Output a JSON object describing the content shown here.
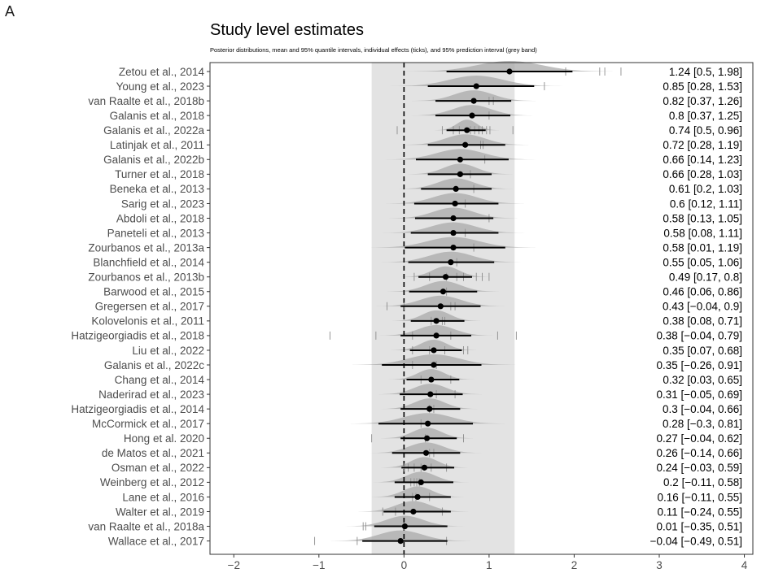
{
  "panel_letter": "A",
  "chart_data": {
    "type": "forest",
    "title": "Study level estimates",
    "subtitle": "Posterior distributions, mean and 95% quantile intervals, individual effects (ticks), and 95% prediction interval (grey band)",
    "xlabel": "",
    "ylabel": "",
    "xlim": [
      -2.28,
      4.1
    ],
    "x_ticks": [
      -2,
      -1,
      0,
      1,
      2,
      3,
      4
    ],
    "x_tick_labels": [
      "−2",
      "−1",
      "0",
      "1",
      "2",
      "3",
      "4"
    ],
    "prediction_interval": [
      -0.38,
      1.3
    ],
    "reference_line": 0,
    "grid": false,
    "studies": [
      {
        "label": "Zetou et al., 2014",
        "mean": 1.24,
        "lower": 0.5,
        "upper": 1.98,
        "text": "1.24 [0.5, 1.98]",
        "effects": [
          1.9,
          2.3,
          2.36,
          2.55
        ]
      },
      {
        "label": "Young et al., 2023",
        "mean": 0.85,
        "lower": 0.28,
        "upper": 1.53,
        "text": "0.85 [0.28, 1.53]",
        "effects": [
          1.65
        ]
      },
      {
        "label": "van Raalte et al., 2018b",
        "mean": 0.82,
        "lower": 0.37,
        "upper": 1.26,
        "text": "0.82 [0.37, 1.26]",
        "effects": [
          1.0,
          1.05
        ]
      },
      {
        "label": "Galanis et al., 2018",
        "mean": 0.8,
        "lower": 0.37,
        "upper": 1.25,
        "text": "0.8 [0.37, 1.25]",
        "effects": [
          1.0
        ]
      },
      {
        "label": "Galanis et al., 2022a",
        "mean": 0.74,
        "lower": 0.5,
        "upper": 0.96,
        "text": "0.74 [0.5, 0.96]",
        "effects": [
          -0.08,
          0.45,
          0.58,
          0.65,
          0.78,
          0.83,
          0.88,
          0.92,
          0.97,
          1.01,
          1.28
        ]
      },
      {
        "label": "Latinjak et al., 2011",
        "mean": 0.72,
        "lower": 0.28,
        "upper": 1.19,
        "text": "0.72 [0.28, 1.19]",
        "effects": [
          0.9,
          0.93
        ]
      },
      {
        "label": "Galanis et al., 2022b",
        "mean": 0.66,
        "lower": 0.14,
        "upper": 1.23,
        "text": "0.66 [0.14, 1.23]",
        "effects": [
          0.95
        ]
      },
      {
        "label": "Turner et al., 2018",
        "mean": 0.66,
        "lower": 0.28,
        "upper": 1.03,
        "text": "0.66 [0.28, 1.03]",
        "effects": [
          0.78
        ]
      },
      {
        "label": "Beneka et al., 2013",
        "mean": 0.61,
        "lower": 0.2,
        "upper": 1.03,
        "text": "0.61 [0.2, 1.03]",
        "effects": [
          0.82
        ]
      },
      {
        "label": "Sarig et al., 2023",
        "mean": 0.6,
        "lower": 0.12,
        "upper": 1.11,
        "text": "0.6 [0.12, 1.11]",
        "effects": [
          0.72
        ]
      },
      {
        "label": "Abdoli et al., 2018",
        "mean": 0.58,
        "lower": 0.13,
        "upper": 1.05,
        "text": "0.58 [0.13, 1.05]",
        "effects": [
          1.0
        ]
      },
      {
        "label": "Paneteli et al., 2013",
        "mean": 0.58,
        "lower": 0.08,
        "upper": 1.11,
        "text": "0.58 [0.08, 1.11]",
        "effects": [
          0.72
        ]
      },
      {
        "label": "Zourbanos et al., 2013a",
        "mean": 0.58,
        "lower": 0.01,
        "upper": 1.19,
        "text": "0.58 [0.01, 1.19]",
        "effects": [
          0.82
        ]
      },
      {
        "label": "Blanchfield et al., 2014",
        "mean": 0.55,
        "lower": 0.05,
        "upper": 1.06,
        "text": "0.55 [0.05, 1.06]",
        "effects": [
          0.62
        ]
      },
      {
        "label": "Zourbanos et al., 2013b",
        "mean": 0.49,
        "lower": 0.17,
        "upper": 0.8,
        "text": "0.49 [0.17, 0.8]",
        "effects": [
          0.12,
          0.3,
          0.5,
          0.62,
          0.7,
          0.85,
          0.92,
          1.0
        ]
      },
      {
        "label": "Barwood et al., 2015",
        "mean": 0.46,
        "lower": 0.06,
        "upper": 0.86,
        "text": "0.46 [0.06, 0.86]",
        "effects": [
          0.5
        ]
      },
      {
        "label": "Gregersen et al., 2017",
        "mean": 0.43,
        "lower": -0.04,
        "upper": 0.9,
        "text": "0.43 [−0.04, 0.9]",
        "effects": [
          -0.2,
          0.0,
          0.55,
          0.6
        ]
      },
      {
        "label": "Kolovelonis et al., 2011",
        "mean": 0.38,
        "lower": 0.08,
        "upper": 0.71,
        "text": "0.38 [0.08, 0.71]",
        "effects": [
          0.32,
          0.45,
          0.48
        ]
      },
      {
        "label": "Hatzigeorgiadis et al., 2018",
        "mean": 0.38,
        "lower": -0.04,
        "upper": 0.79,
        "text": "0.38 [−0.04, 0.79]",
        "effects": [
          -0.87,
          -0.33,
          0.1,
          0.55,
          1.1,
          1.32
        ]
      },
      {
        "label": "Liu et al., 2022",
        "mean": 0.35,
        "lower": 0.07,
        "upper": 0.68,
        "text": "0.35 [0.07, 0.68]",
        "effects": [
          0.1,
          0.3,
          0.48,
          0.7,
          0.75
        ]
      },
      {
        "label": "Galanis et al., 2022c",
        "mean": 0.35,
        "lower": -0.26,
        "upper": 0.91,
        "text": "0.35 [−0.26, 0.91]",
        "effects": [
          0.1,
          0.38
        ]
      },
      {
        "label": "Chang et al., 2014",
        "mean": 0.32,
        "lower": 0.03,
        "upper": 0.65,
        "text": "0.32 [0.03, 0.65]",
        "effects": [
          0.2,
          0.55
        ]
      },
      {
        "label": "Naderirad et al., 2023",
        "mean": 0.31,
        "lower": -0.05,
        "upper": 0.69,
        "text": "0.31 [−0.05, 0.69]",
        "effects": [
          0.38,
          0.6
        ]
      },
      {
        "label": "Hatzigeorgiadis et al., 2014",
        "mean": 0.3,
        "lower": -0.04,
        "upper": 0.66,
        "text": "0.3 [−0.04, 0.66]",
        "effects": [
          0.3,
          0.35
        ]
      },
      {
        "label": "McCormick et al., 2017",
        "mean": 0.28,
        "lower": -0.3,
        "upper": 0.81,
        "text": "0.28 [−0.3, 0.81]",
        "effects": [
          0.2
        ]
      },
      {
        "label": "Hong et al. 2020",
        "mean": 0.27,
        "lower": -0.04,
        "upper": 0.62,
        "text": "0.27 [−0.04, 0.62]",
        "effects": [
          -0.38,
          0.25,
          0.7
        ]
      },
      {
        "label": "de Matos et al., 2021",
        "mean": 0.26,
        "lower": -0.14,
        "upper": 0.66,
        "text": "0.26 [−0.14, 0.66]",
        "effects": [
          0.3,
          0.35
        ]
      },
      {
        "label": "Osman et al., 2022",
        "mean": 0.24,
        "lower": -0.03,
        "upper": 0.59,
        "text": "0.24 [−0.03, 0.59]",
        "effects": [
          0.0,
          0.05,
          0.12,
          0.2,
          0.32,
          0.5
        ]
      },
      {
        "label": "Weinberg et al., 2012",
        "mean": 0.2,
        "lower": -0.11,
        "upper": 0.58,
        "text": "0.2 [−0.11, 0.58]",
        "effects": [
          0.08,
          0.12,
          0.15,
          0.18
        ]
      },
      {
        "label": "Lane et al., 2016",
        "mean": 0.16,
        "lower": -0.11,
        "upper": 0.55,
        "text": "0.16 [−0.11, 0.55]",
        "effects": [
          0.1,
          0.14,
          0.3
        ]
      },
      {
        "label": "Walter et al., 2019",
        "mean": 0.11,
        "lower": -0.24,
        "upper": 0.55,
        "text": "0.11 [−0.24, 0.55]",
        "effects": [
          -0.25,
          -0.1,
          0.45
        ]
      },
      {
        "label": "van Raalte et al., 2018a",
        "mean": 0.01,
        "lower": -0.35,
        "upper": 0.51,
        "text": "0.01 [−0.35, 0.51]",
        "effects": [
          -0.48,
          -0.45,
          0.0
        ]
      },
      {
        "label": "Wallace et al., 2017",
        "mean": -0.04,
        "lower": -0.49,
        "upper": 0.51,
        "text": "−0.04 [−0.49, 0.51]",
        "effects": [
          -1.05,
          -0.55,
          0.5
        ]
      }
    ]
  }
}
